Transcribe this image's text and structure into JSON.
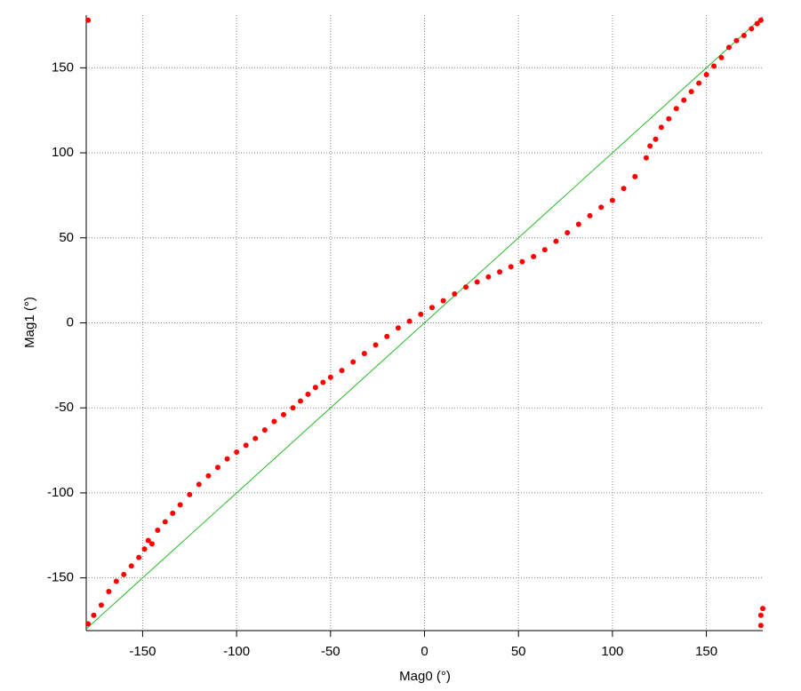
{
  "chart_data": {
    "type": "scatter",
    "x_label": "Mag0 (°)",
    "y_label": "Mag1 (°)",
    "xlim": [
      -180,
      180
    ],
    "ylim": [
      -181,
      181
    ],
    "xticks": [
      -150,
      -100,
      -50,
      0,
      50,
      100,
      150
    ],
    "yticks": [
      -150,
      -100,
      -50,
      0,
      50,
      100,
      150
    ],
    "grid": true,
    "series": [
      {
        "color": "#ff0000",
        "x": [
          -179,
          -176,
          -172,
          -168,
          -164,
          -160,
          -156,
          -152,
          -149,
          -147,
          -145,
          -142,
          -138,
          -134,
          -130,
          -125,
          -120,
          -115,
          -110,
          -105,
          -100,
          -95,
          -90,
          -85,
          -80,
          -75,
          -70,
          -66,
          -62,
          -58,
          -54,
          -50,
          -44,
          -38,
          -32,
          -26,
          -20,
          -14,
          -8,
          -2,
          4,
          10,
          16,
          22,
          28,
          34,
          40,
          46,
          52,
          58,
          64,
          70,
          76,
          82,
          88,
          94,
          100,
          106,
          112,
          118,
          120,
          123,
          126,
          130,
          134,
          138,
          142,
          146,
          150,
          154,
          158,
          162,
          166,
          170,
          174,
          177,
          179,
          -179,
          179,
          179,
          180
        ],
        "values": [
          -177,
          -172,
          -166,
          -158,
          -152,
          -148,
          -143,
          -138,
          -133,
          -128,
          -130,
          -122,
          -117,
          -112,
          -107,
          -101,
          -95,
          -90,
          -85,
          -80,
          -76,
          -72,
          -68,
          -63,
          -58,
          -54,
          -50,
          -46,
          -42,
          -38,
          -35,
          -32,
          -28,
          -23,
          -18,
          -13,
          -8,
          -3,
          1,
          5,
          9,
          13,
          17,
          21,
          24,
          27,
          30,
          33,
          36,
          39,
          43,
          48,
          53,
          58,
          63,
          68,
          72,
          79,
          86,
          97,
          104,
          108,
          115,
          120,
          126,
          131,
          136,
          141,
          146,
          151,
          156,
          162,
          166,
          169,
          173,
          176,
          178,
          178,
          -178,
          -172,
          -168
        ]
      }
    ],
    "reference_line": {
      "color": "#22bb22",
      "x": [
        -180,
        180
      ],
      "values": [
        -180,
        180
      ]
    }
  }
}
